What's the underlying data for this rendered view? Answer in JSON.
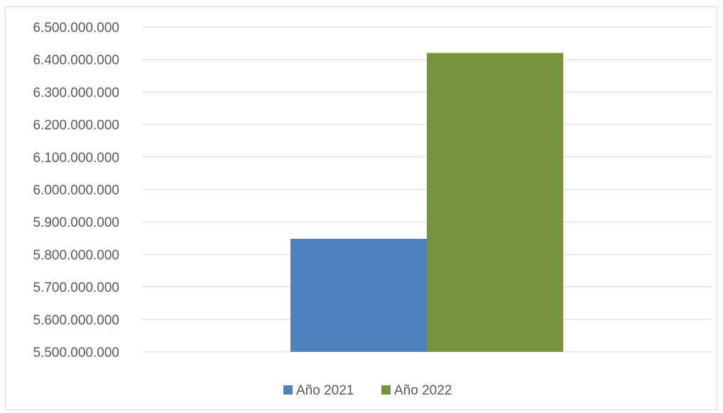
{
  "chart_data": {
    "type": "bar",
    "categories": [
      ""
    ],
    "series": [
      {
        "name": "Año 2021",
        "values": [
          5848000000
        ],
        "color": "#4f81bd"
      },
      {
        "name": "Año 2022",
        "values": [
          6420000000
        ],
        "color": "#77933c"
      }
    ],
    "title": "",
    "xlabel": "",
    "ylabel": "",
    "ylim": [
      5500000000,
      6500000000
    ],
    "y_ticks": [
      "5.500.000.000",
      "5.600.000.000",
      "5.700.000.000",
      "5.800.000.000",
      "5.900.000.000",
      "6.000.000.000",
      "6.100.000.000",
      "6.200.000.000",
      "6.300.000.000",
      "6.400.000.000",
      "6.500.000.000"
    ],
    "grid": true,
    "legend_position": "bottom"
  }
}
